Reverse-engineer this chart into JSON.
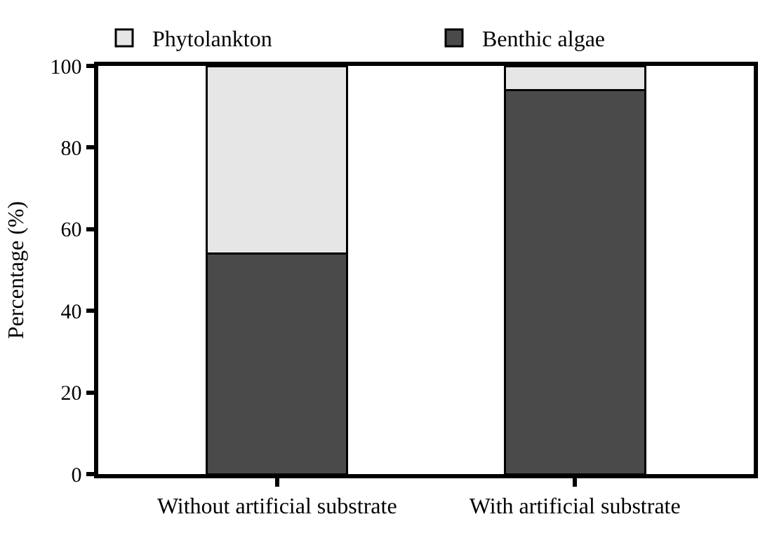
{
  "chart_data": {
    "type": "bar",
    "stacked": true,
    "ylabel": "Percentage (%)",
    "categories": [
      "Without artificial substrate",
      "With artificial substrate"
    ],
    "series": [
      {
        "name": "Benthic algae",
        "color": "#4a4a4a",
        "values": [
          54,
          94
        ]
      },
      {
        "name": "Phytolankton",
        "color": "#e6e6e6",
        "values": [
          46,
          6
        ]
      }
    ],
    "ylim": [
      0,
      100
    ],
    "yticks": [
      0,
      20,
      40,
      60,
      80,
      100
    ],
    "legend": "top"
  }
}
